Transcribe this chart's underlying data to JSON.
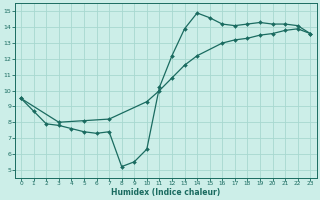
{
  "xlabel": "Humidex (Indice chaleur)",
  "background_color": "#cceee8",
  "grid_color": "#a8d8d0",
  "line_color": "#1a6b60",
  "xlim": [
    -0.5,
    23.5
  ],
  "ylim": [
    4.5,
    15.5
  ],
  "xticks": [
    0,
    1,
    2,
    3,
    4,
    5,
    6,
    7,
    8,
    9,
    10,
    11,
    12,
    13,
    14,
    15,
    16,
    17,
    18,
    19,
    20,
    21,
    22,
    23
  ],
  "yticks": [
    5,
    6,
    7,
    8,
    9,
    10,
    11,
    12,
    13,
    14,
    15
  ],
  "line1_x": [
    0,
    1,
    2,
    3,
    4,
    5,
    6,
    7,
    8,
    9,
    10,
    11,
    12,
    13,
    14,
    15,
    16,
    17,
    18,
    19,
    20,
    21,
    22,
    23
  ],
  "line1_y": [
    9.5,
    8.7,
    7.9,
    7.8,
    7.6,
    7.4,
    7.3,
    7.4,
    5.2,
    5.5,
    6.3,
    10.2,
    12.2,
    13.9,
    14.9,
    14.6,
    14.2,
    14.1,
    14.2,
    14.3,
    14.2,
    14.2,
    14.1,
    13.6
  ],
  "line2_x": [
    0,
    3,
    5,
    7,
    10,
    11,
    12,
    13,
    14,
    16,
    17,
    18,
    19,
    20,
    21,
    22,
    23
  ],
  "line2_y": [
    9.5,
    8.0,
    8.1,
    8.2,
    9.3,
    10.0,
    10.8,
    11.6,
    12.2,
    13.0,
    13.2,
    13.3,
    13.5,
    13.6,
    13.8,
    13.9,
    13.6
  ]
}
